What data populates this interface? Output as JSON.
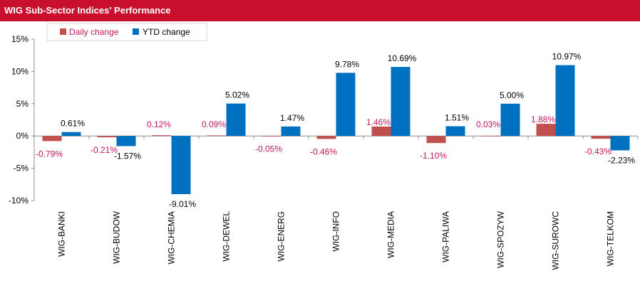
{
  "header": {
    "title": "WIG Sub-Sector Indices' Performance"
  },
  "colors": {
    "header_bg": "#c8102e",
    "daily": "#c0504d",
    "ytd": "#0070c0",
    "daily_label": "#c0185a",
    "legend_daily_text": "#c0185a",
    "legend_ytd_text": "#000000"
  },
  "chart_data": {
    "type": "bar",
    "title": "WIG Sub-Sector Indices' Performance",
    "categories": [
      "WIG-BANKI",
      "WIG-BUDOW",
      "WIG-CHEMIA",
      "WIG-DEWEL",
      "WIG-ENERG",
      "WIG-INFO",
      "WIG-MEDIA",
      "WIG-PALIWA",
      "WIG-SPOZYW",
      "WIG-SUROWC",
      "WIG-TELKOM"
    ],
    "series": [
      {
        "name": "Daily change",
        "values": [
          -0.79,
          -0.21,
          0.12,
          0.09,
          -0.05,
          -0.46,
          1.46,
          -1.1,
          0.03,
          1.88,
          -0.43
        ],
        "labels": [
          "-0.79%",
          "-0.21%",
          "0.12%",
          "0.09%",
          "-0.05%",
          "-0.46%",
          "1.46%",
          "-1.10%",
          "0.03%",
          "1.88%",
          "-0.43%"
        ]
      },
      {
        "name": "YTD change",
        "values": [
          0.61,
          -1.57,
          -9.01,
          5.02,
          1.47,
          9.78,
          10.69,
          1.51,
          5.0,
          10.97,
          -2.23
        ],
        "labels": [
          "0.61%",
          "-1.57%",
          "-9.01%",
          "5.02%",
          "1.47%",
          "9.78%",
          "10.69%",
          "1.51%",
          "5.00%",
          "10.97%",
          "-2.23%"
        ]
      }
    ],
    "yticks": [
      15,
      10,
      5,
      0,
      -5,
      -10
    ],
    "ytick_labels": [
      "15%",
      "10%",
      "5%",
      "0%",
      "-5%",
      "-10%"
    ],
    "ylim": [
      -10,
      15
    ],
    "grid": false,
    "legend": "top-left"
  }
}
